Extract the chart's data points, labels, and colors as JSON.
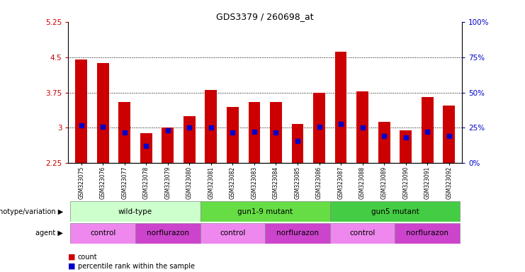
{
  "title": "GDS3379 / 260698_at",
  "samples": [
    "GSM323075",
    "GSM323076",
    "GSM323077",
    "GSM323078",
    "GSM323079",
    "GSM323080",
    "GSM323081",
    "GSM323082",
    "GSM323083",
    "GSM323084",
    "GSM323085",
    "GSM323086",
    "GSM323087",
    "GSM323088",
    "GSM323089",
    "GSM323090",
    "GSM323091",
    "GSM323092"
  ],
  "counts": [
    4.45,
    4.38,
    3.55,
    2.88,
    3.0,
    3.25,
    3.8,
    3.45,
    3.55,
    3.55,
    3.08,
    3.75,
    4.62,
    3.78,
    3.12,
    2.95,
    3.65,
    3.48
  ],
  "percentile_ranks": [
    3.05,
    3.02,
    2.9,
    2.62,
    2.95,
    3.0,
    3.0,
    2.9,
    2.92,
    2.9,
    2.72,
    3.02,
    3.08,
    3.0,
    2.82,
    2.8,
    2.92,
    2.82
  ],
  "ymin": 2.25,
  "ymax": 5.25,
  "yticks": [
    2.25,
    3.0,
    3.75,
    4.5,
    5.25
  ],
  "ytick_labels": [
    "2.25",
    "3",
    "3.75",
    "4.5",
    "5.25"
  ],
  "right_yticks": [
    0,
    25,
    50,
    75,
    100
  ],
  "bar_color": "#cc0000",
  "marker_color": "#0000cc",
  "genotype_groups": [
    {
      "label": "wild-type",
      "start": 0,
      "end": 6,
      "color": "#ccffcc"
    },
    {
      "label": "gun1-9 mutant",
      "start": 6,
      "end": 12,
      "color": "#66dd44"
    },
    {
      "label": "gun5 mutant",
      "start": 12,
      "end": 18,
      "color": "#44cc44"
    }
  ],
  "agent_groups": [
    {
      "label": "control",
      "start": 0,
      "end": 3,
      "color": "#ee88ee"
    },
    {
      "label": "norflurazon",
      "start": 3,
      "end": 6,
      "color": "#cc44cc"
    },
    {
      "label": "control",
      "start": 6,
      "end": 9,
      "color": "#ee88ee"
    },
    {
      "label": "norflurazon",
      "start": 9,
      "end": 12,
      "color": "#cc44cc"
    },
    {
      "label": "control",
      "start": 12,
      "end": 15,
      "color": "#ee88ee"
    },
    {
      "label": "norflurazon",
      "start": 15,
      "end": 18,
      "color": "#cc44cc"
    }
  ]
}
